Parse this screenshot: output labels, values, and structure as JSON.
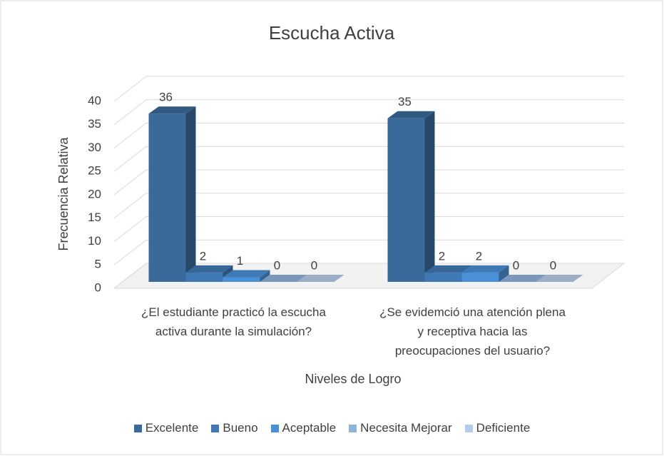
{
  "chart_data": {
    "type": "bar3d",
    "title": "Escucha Activa",
    "x_label": "Niveles de Logro",
    "y_label": "Frecuencia Relativa",
    "categories": [
      "¿El estudiante practicó la escucha activa durante la simulación?",
      "¿Se evidemció una atención plena y receptiva hacia las preocupaciones del usuario?"
    ],
    "series": [
      {
        "name": "Excelente",
        "color": "#3a6a99",
        "values": [
          36,
          35
        ]
      },
      {
        "name": "Bueno",
        "color": "#3f78b3",
        "values": [
          2,
          2
        ]
      },
      {
        "name": "Aceptable",
        "color": "#4a90d6",
        "values": [
          1,
          2
        ]
      },
      {
        "name": "Necesita Mejorar",
        "color": "#8eb3dd",
        "values": [
          0,
          0
        ]
      },
      {
        "name": "Deficiente",
        "color": "#b7cbe9",
        "values": [
          0,
          0
        ]
      }
    ],
    "ylim": [
      0,
      40
    ],
    "yticks": [
      0,
      5,
      10,
      15,
      20,
      25,
      30,
      35,
      40
    ],
    "grid": true,
    "legend": "bottom"
  }
}
